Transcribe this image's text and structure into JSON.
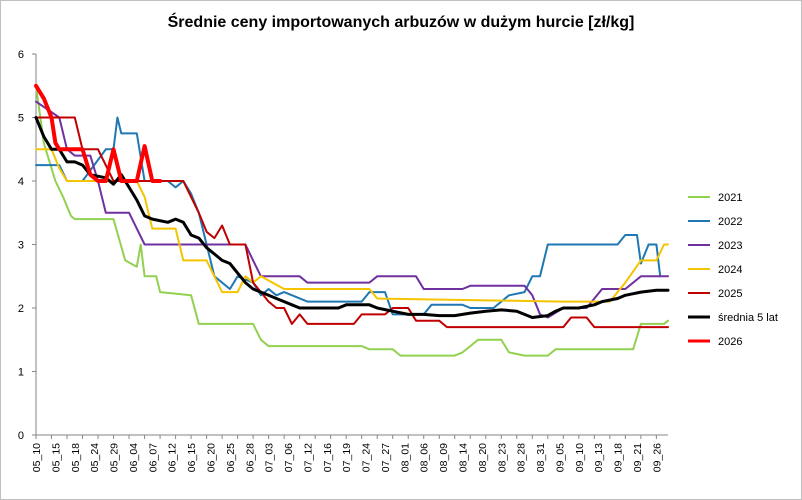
{
  "chart_data": {
    "type": "line",
    "title": "Średnie ceny importowanych arbuzów w dużym hurcie [zł/kg]",
    "xlabel": "",
    "ylabel": "",
    "ylim": [
      0,
      6
    ],
    "yticks": [
      "0",
      "1",
      "2",
      "3",
      "4",
      "5",
      "6"
    ],
    "grid": false,
    "legend_position": "right",
    "x_tick_labels": [
      "05_10",
      "05_15",
      "05_18",
      "05_24",
      "05_29",
      "06_04",
      "06_07",
      "06_12",
      "06_15",
      "06_20",
      "06_25",
      "06_28",
      "07_03",
      "07_06",
      "07_12",
      "07_16",
      "07_19",
      "07_24",
      "07_27",
      "08_01",
      "08_06",
      "08_09",
      "08_14",
      "08_20",
      "08_23",
      "08_28",
      "08_31",
      "09_05",
      "09_10",
      "09_13",
      "09_18",
      "09_21",
      "09_26"
    ],
    "n_points": 91,
    "series": [
      {
        "name": "2021",
        "color": "#92d050",
        "width": 2,
        "points": [
          [
            0,
            5.5
          ],
          [
            2,
            4.6
          ],
          [
            5,
            4.0
          ],
          [
            7,
            3.75
          ],
          [
            9,
            3.45
          ],
          [
            10,
            3.4
          ],
          [
            20,
            3.4
          ],
          [
            23,
            2.75
          ],
          [
            26,
            2.65
          ],
          [
            27,
            3.0
          ],
          [
            28,
            2.5
          ],
          [
            31,
            2.5
          ],
          [
            32,
            2.25
          ],
          [
            40,
            2.2
          ],
          [
            42,
            1.75
          ],
          [
            56,
            1.75
          ],
          [
            58,
            1.5
          ],
          [
            60,
            1.4
          ],
          [
            84,
            1.4
          ],
          [
            86,
            1.35
          ],
          [
            92,
            1.35
          ],
          [
            94,
            1.25
          ],
          [
            108,
            1.25
          ],
          [
            110,
            1.3
          ],
          [
            112,
            1.4
          ],
          [
            114,
            1.5
          ],
          [
            120,
            1.5
          ],
          [
            122,
            1.3
          ],
          [
            126,
            1.25
          ],
          [
            132,
            1.25
          ],
          [
            134,
            1.35
          ],
          [
            154,
            1.35
          ],
          [
            156,
            1.75
          ],
          [
            162,
            1.75
          ],
          [
            163,
            1.8
          ]
        ]
      },
      {
        "name": "2022",
        "color": "#1f77b4",
        "width": 2,
        "points": [
          [
            0,
            4.25
          ],
          [
            6,
            4.25
          ],
          [
            8,
            4.0
          ],
          [
            12,
            4.0
          ],
          [
            18,
            4.5
          ],
          [
            20,
            4.5
          ],
          [
            21,
            5.0
          ],
          [
            22,
            4.75
          ],
          [
            26,
            4.75
          ],
          [
            28,
            4.0
          ],
          [
            34,
            4.0
          ],
          [
            36,
            3.9
          ],
          [
            38,
            4.0
          ],
          [
            40,
            3.8
          ],
          [
            42,
            3.5
          ],
          [
            44,
            3.0
          ],
          [
            46,
            2.5
          ],
          [
            50,
            2.3
          ],
          [
            52,
            2.5
          ],
          [
            56,
            2.4
          ],
          [
            58,
            2.2
          ],
          [
            60,
            2.3
          ],
          [
            62,
            2.2
          ],
          [
            64,
            2.25
          ],
          [
            70,
            2.1
          ],
          [
            84,
            2.1
          ],
          [
            86,
            2.25
          ],
          [
            90,
            2.25
          ],
          [
            92,
            1.9
          ],
          [
            100,
            1.9
          ],
          [
            102,
            2.05
          ],
          [
            110,
            2.05
          ],
          [
            112,
            2.0
          ],
          [
            118,
            2.0
          ],
          [
            122,
            2.2
          ],
          [
            126,
            2.25
          ],
          [
            128,
            2.5
          ],
          [
            130,
            2.5
          ],
          [
            132,
            3.0
          ],
          [
            150,
            3.0
          ],
          [
            152,
            3.15
          ],
          [
            155,
            3.15
          ],
          [
            156,
            2.7
          ],
          [
            158,
            3.0
          ],
          [
            160,
            3.0
          ],
          [
            161,
            2.5
          ]
        ]
      },
      {
        "name": "2023",
        "color": "#7030a0",
        "width": 2,
        "points": [
          [
            0,
            5.25
          ],
          [
            6,
            5.0
          ],
          [
            8,
            4.5
          ],
          [
            10,
            4.4
          ],
          [
            14,
            4.4
          ],
          [
            16,
            4.0
          ],
          [
            18,
            3.5
          ],
          [
            24,
            3.5
          ],
          [
            26,
            3.25
          ],
          [
            28,
            3.0
          ],
          [
            36,
            3.0
          ],
          [
            38,
            3.0
          ],
          [
            42,
            3.0
          ],
          [
            54,
            3.0
          ],
          [
            56,
            2.75
          ],
          [
            58,
            2.5
          ],
          [
            68,
            2.5
          ],
          [
            70,
            2.4
          ],
          [
            86,
            2.4
          ],
          [
            88,
            2.5
          ],
          [
            98,
            2.5
          ],
          [
            100,
            2.3
          ],
          [
            110,
            2.3
          ],
          [
            112,
            2.35
          ],
          [
            126,
            2.35
          ],
          [
            128,
            2.2
          ],
          [
            130,
            1.9
          ],
          [
            132,
            1.85
          ],
          [
            136,
            2.0
          ],
          [
            142,
            2.0
          ],
          [
            146,
            2.3
          ],
          [
            152,
            2.3
          ],
          [
            156,
            2.5
          ],
          [
            163,
            2.5
          ]
        ]
      },
      {
        "name": "2024",
        "color": "#f5c400",
        "width": 2,
        "points": [
          [
            0,
            4.5
          ],
          [
            4,
            4.5
          ],
          [
            6,
            4.2
          ],
          [
            8,
            4.0
          ],
          [
            14,
            4.0
          ],
          [
            16,
            4.0
          ],
          [
            22,
            4.0
          ],
          [
            26,
            4.0
          ],
          [
            28,
            3.75
          ],
          [
            30,
            3.25
          ],
          [
            36,
            3.25
          ],
          [
            38,
            2.75
          ],
          [
            44,
            2.75
          ],
          [
            46,
            2.5
          ],
          [
            48,
            2.25
          ],
          [
            52,
            2.25
          ],
          [
            54,
            2.5
          ],
          [
            56,
            2.4
          ],
          [
            58,
            2.5
          ],
          [
            64,
            2.3
          ],
          [
            72,
            2.3
          ],
          [
            74,
            2.3
          ],
          [
            86,
            2.3
          ],
          [
            88,
            2.15
          ],
          [
            136,
            2.1
          ],
          [
            142,
            2.1
          ],
          [
            148,
            2.1
          ],
          [
            152,
            2.4
          ],
          [
            156,
            2.75
          ],
          [
            160,
            2.75
          ],
          [
            162,
            3.0
          ],
          [
            163,
            3.0
          ]
        ]
      },
      {
        "name": "2025",
        "color": "#c00000",
        "width": 2,
        "points": [
          [
            0,
            5.0
          ],
          [
            2,
            5.0
          ],
          [
            4,
            5.0
          ],
          [
            10,
            5.0
          ],
          [
            12,
            4.5
          ],
          [
            16,
            4.5
          ],
          [
            20,
            4.0
          ],
          [
            22,
            4.0
          ],
          [
            26,
            4.0
          ],
          [
            30,
            4.0
          ],
          [
            34,
            4.0
          ],
          [
            38,
            4.0
          ],
          [
            42,
            3.5
          ],
          [
            44,
            3.2
          ],
          [
            46,
            3.1
          ],
          [
            48,
            3.3
          ],
          [
            50,
            3.0
          ],
          [
            54,
            3.0
          ],
          [
            56,
            2.4
          ],
          [
            60,
            2.1
          ],
          [
            62,
            2.0
          ],
          [
            64,
            2.0
          ],
          [
            66,
            1.75
          ],
          [
            68,
            1.9
          ],
          [
            70,
            1.75
          ],
          [
            82,
            1.75
          ],
          [
            84,
            1.9
          ],
          [
            90,
            1.9
          ],
          [
            92,
            2.0
          ],
          [
            96,
            2.0
          ],
          [
            98,
            1.8
          ],
          [
            104,
            1.8
          ],
          [
            106,
            1.7
          ],
          [
            136,
            1.7
          ],
          [
            138,
            1.85
          ],
          [
            142,
            1.85
          ],
          [
            144,
            1.7
          ],
          [
            163,
            1.7
          ]
        ]
      },
      {
        "name": "średnia 5 lat",
        "color": "#000000",
        "width": 3,
        "points": [
          [
            0,
            5.0
          ],
          [
            2,
            4.7
          ],
          [
            4,
            4.5
          ],
          [
            6,
            4.5
          ],
          [
            8,
            4.3
          ],
          [
            10,
            4.3
          ],
          [
            12,
            4.25
          ],
          [
            14,
            4.1
          ],
          [
            18,
            4.05
          ],
          [
            20,
            3.95
          ],
          [
            22,
            4.1
          ],
          [
            24,
            3.9
          ],
          [
            26,
            3.7
          ],
          [
            28,
            3.45
          ],
          [
            30,
            3.4
          ],
          [
            34,
            3.35
          ],
          [
            36,
            3.4
          ],
          [
            38,
            3.35
          ],
          [
            40,
            3.15
          ],
          [
            42,
            3.1
          ],
          [
            44,
            2.95
          ],
          [
            46,
            2.85
          ],
          [
            48,
            2.75
          ],
          [
            50,
            2.7
          ],
          [
            52,
            2.55
          ],
          [
            54,
            2.4
          ],
          [
            56,
            2.3
          ],
          [
            58,
            2.25
          ],
          [
            60,
            2.2
          ],
          [
            62,
            2.15
          ],
          [
            64,
            2.1
          ],
          [
            66,
            2.05
          ],
          [
            68,
            2.0
          ],
          [
            78,
            2.0
          ],
          [
            80,
            2.05
          ],
          [
            86,
            2.05
          ],
          [
            88,
            2.0
          ],
          [
            92,
            1.95
          ],
          [
            96,
            1.9
          ],
          [
            100,
            1.9
          ],
          [
            104,
            1.88
          ],
          [
            108,
            1.88
          ],
          [
            112,
            1.92
          ],
          [
            116,
            1.95
          ],
          [
            120,
            1.97
          ],
          [
            124,
            1.95
          ],
          [
            126,
            1.9
          ],
          [
            128,
            1.85
          ],
          [
            132,
            1.88
          ],
          [
            134,
            1.95
          ],
          [
            136,
            2.0
          ],
          [
            140,
            2.0
          ],
          [
            144,
            2.05
          ],
          [
            146,
            2.1
          ],
          [
            150,
            2.15
          ],
          [
            152,
            2.2
          ],
          [
            156,
            2.25
          ],
          [
            160,
            2.28
          ],
          [
            163,
            2.28
          ]
        ]
      },
      {
        "name": "2026",
        "color": "#ff0000",
        "width": 4,
        "points": [
          [
            0,
            5.5
          ],
          [
            2,
            5.3
          ],
          [
            4,
            5.0
          ],
          [
            5,
            4.6
          ],
          [
            6,
            4.5
          ],
          [
            10,
            4.5
          ],
          [
            12,
            4.5
          ],
          [
            14,
            4.1
          ],
          [
            16,
            4.0
          ],
          [
            18,
            4.0
          ],
          [
            20,
            4.5
          ],
          [
            22,
            4.0
          ],
          [
            24,
            4.0
          ],
          [
            26,
            4.0
          ],
          [
            28,
            4.55
          ],
          [
            30,
            4.0
          ],
          [
            32,
            4.0
          ]
        ]
      }
    ]
  }
}
